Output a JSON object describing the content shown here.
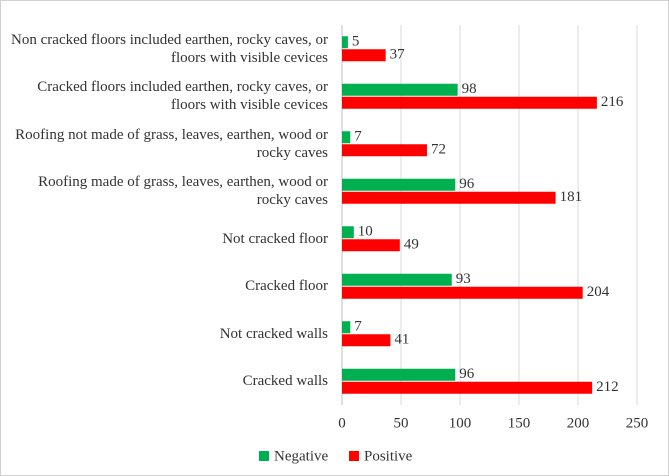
{
  "chart_data": {
    "type": "hbar",
    "categories": [
      "Non cracked floors included earthen, rocky caves, or floors with visible cevices",
      "Cracked floors included earthen, rocky caves, or floors with visible cevices",
      "Roofing not made of grass, leaves, earthen, wood or rocky caves",
      "Roofing made of grass, leaves, earthen, wood or rocky caves",
      "Not cracked floor",
      "Cracked floor",
      "Not cracked walls",
      "Cracked walls"
    ],
    "series": [
      {
        "name": "Negative",
        "color": "#00b050",
        "values": [
          5,
          98,
          7,
          96,
          10,
          93,
          7,
          96
        ]
      },
      {
        "name": "Positive",
        "color": "#ff0000",
        "values": [
          37,
          216,
          72,
          181,
          49,
          204,
          41,
          212
        ]
      }
    ],
    "xlim": [
      0,
      250
    ],
    "xticks": [
      0,
      50,
      100,
      150,
      200,
      250
    ],
    "grid": true,
    "legend": "bottom"
  }
}
